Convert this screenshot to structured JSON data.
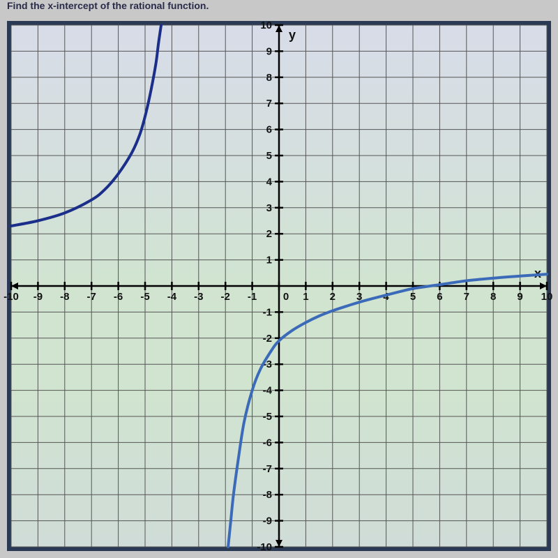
{
  "top_text": "Find the x-intercept of the rational function.",
  "chart": {
    "type": "line",
    "x_axis_label": "x",
    "y_axis_label": "y",
    "xlim": [
      -10,
      10
    ],
    "ylim": [
      -10,
      10
    ],
    "xtick_step": 1,
    "ytick_step": 1,
    "x_ticks": [
      -10,
      -9,
      -8,
      -7,
      -6,
      -5,
      -4,
      -3,
      -2,
      -1,
      0,
      1,
      2,
      3,
      4,
      5,
      6,
      7,
      8,
      9,
      10
    ],
    "y_ticks": [
      -10,
      -9,
      -8,
      -7,
      -6,
      -5,
      -4,
      -3,
      -2,
      -1,
      1,
      2,
      3,
      4,
      5,
      6,
      7,
      8,
      9,
      10
    ],
    "grid_color": "#555555",
    "axis_color": "#000000",
    "tick_label_fontsize": 15,
    "axis_label_fontsize": 18,
    "background_gradient": [
      "#d8dce8",
      "#d0e4d0",
      "#d0dcd8"
    ],
    "curves": [
      {
        "name": "left-branch",
        "color": "#1a2e8a",
        "points": [
          [
            -10,
            2.3
          ],
          [
            -9,
            2.5
          ],
          [
            -8,
            2.8
          ],
          [
            -7,
            3.3
          ],
          [
            -6.5,
            3.7
          ],
          [
            -6,
            4.3
          ],
          [
            -5.5,
            5.1
          ],
          [
            -5.2,
            5.8
          ],
          [
            -5,
            6.5
          ],
          [
            -4.8,
            7.4
          ],
          [
            -4.6,
            8.5
          ],
          [
            -4.5,
            9.3
          ],
          [
            -4.4,
            10
          ]
        ]
      },
      {
        "name": "right-branch",
        "color": "#3a6ab8",
        "points": [
          [
            -1.9,
            -10
          ],
          [
            -1.8,
            -9
          ],
          [
            -1.7,
            -8
          ],
          [
            -1.5,
            -6.5
          ],
          [
            -1.3,
            -5.2
          ],
          [
            -1,
            -4
          ],
          [
            -0.7,
            -3.2
          ],
          [
            -0.3,
            -2.5
          ],
          [
            0,
            -2.1
          ],
          [
            0.5,
            -1.7
          ],
          [
            1,
            -1.4
          ],
          [
            1.5,
            -1.15
          ],
          [
            2,
            -0.95
          ],
          [
            2.5,
            -0.78
          ],
          [
            3,
            -0.62
          ],
          [
            3.5,
            -0.48
          ],
          [
            4,
            -0.35
          ],
          [
            4.5,
            -0.22
          ],
          [
            5,
            -0.1
          ],
          [
            6,
            0.05
          ],
          [
            7,
            0.2
          ],
          [
            8,
            0.3
          ],
          [
            9,
            0.38
          ],
          [
            10,
            0.45
          ]
        ]
      }
    ]
  }
}
